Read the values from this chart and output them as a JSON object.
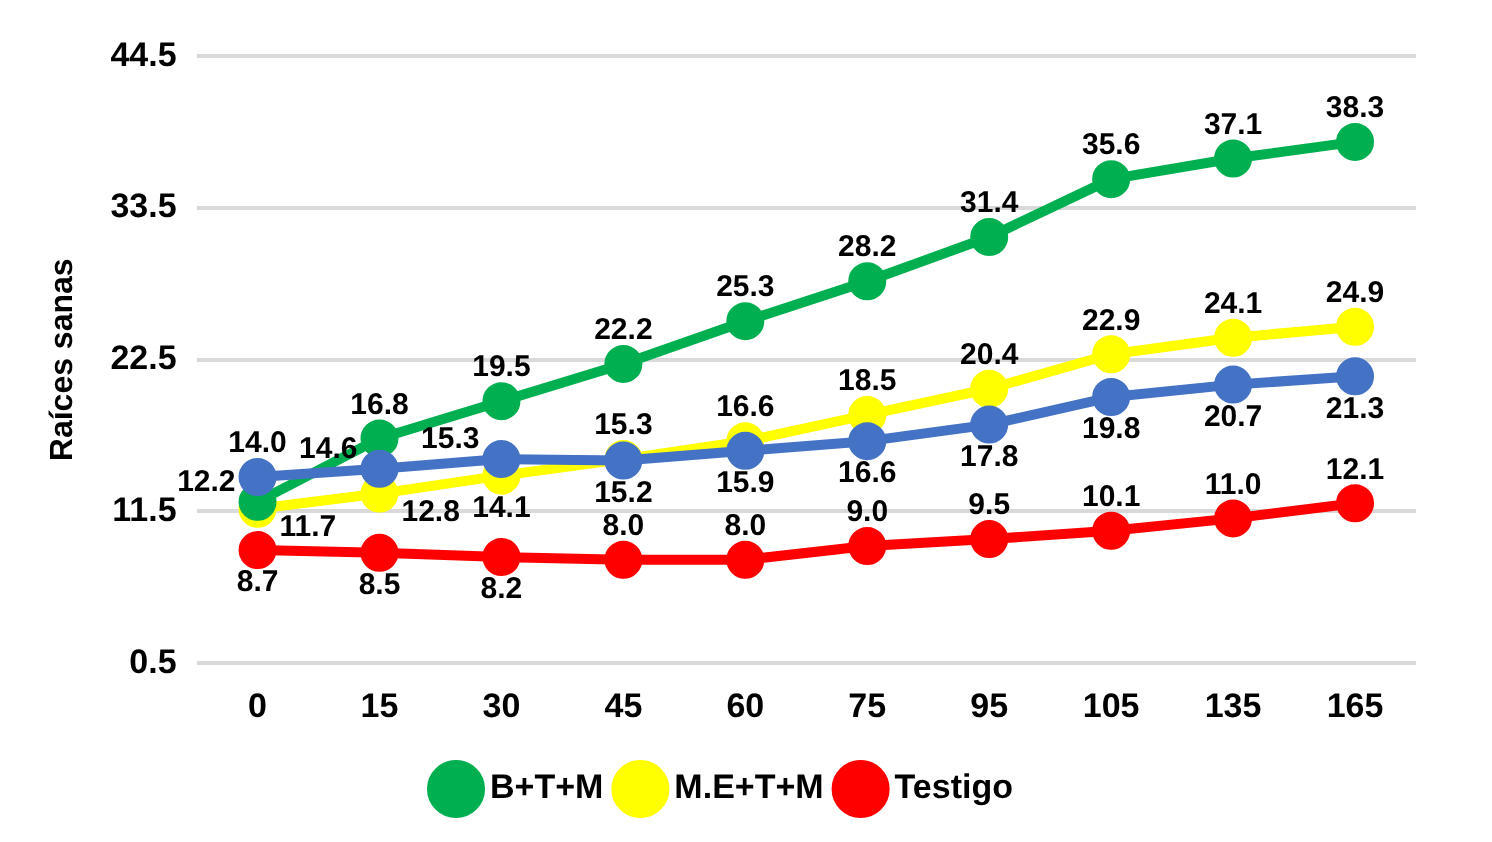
{
  "chart_data": {
    "type": "line",
    "ylabel": "Raíces sanas",
    "categories": [
      "0",
      "15",
      "30",
      "45",
      "60",
      "75",
      "95",
      "105",
      "135",
      "165"
    ],
    "series": [
      {
        "color": "#4472c4",
        "values": [
          14.0,
          14.6,
          15.3,
          15.2,
          15.9,
          16.6,
          17.8,
          19.8,
          20.7,
          21.3
        ],
        "value_labels": [
          "14.0",
          "14.6",
          "15.3",
          "15.2",
          "15.9",
          "16.6",
          "17.8",
          "19.8",
          "20.7",
          "21.3"
        ]
      },
      {
        "name": "B+T+M",
        "color": "#00b050",
        "values": [
          12.2,
          16.8,
          19.5,
          22.2,
          25.3,
          28.2,
          31.4,
          35.6,
          37.1,
          38.3
        ],
        "value_labels": [
          "12.2",
          "16.8",
          "19.5",
          "22.2",
          "25.3",
          "28.2",
          "31.4",
          "35.6",
          "37.1",
          "38.3"
        ]
      },
      {
        "name": "M.E+T+M",
        "color": "#ffff00",
        "values": [
          11.7,
          12.8,
          14.1,
          15.3,
          16.6,
          18.5,
          20.4,
          22.9,
          24.1,
          24.9
        ],
        "value_labels": [
          "11.7",
          "12.8",
          "14.1",
          "15.3",
          "16.6",
          "18.5",
          "20.4",
          "22.9",
          "24.1",
          "24.9"
        ]
      },
      {
        "name": "Testigo",
        "color": "#ff0000",
        "values": [
          8.7,
          8.5,
          8.2,
          8.0,
          8.0,
          9.0,
          9.5,
          10.1,
          11.0,
          12.1
        ],
        "value_labels": [
          "8.7",
          "8.5",
          "8.2",
          "8.0",
          "8.0",
          "9.0",
          "9.5",
          "10.1",
          "11.0",
          "12.1"
        ]
      }
    ],
    "ylim": [
      0.5,
      44.5
    ],
    "yticks": [
      {
        "value": 0.5,
        "label": "0.5"
      },
      {
        "value": 11.5,
        "label": "11.5"
      },
      {
        "value": 22.5,
        "label": "22.5"
      },
      {
        "value": 33.5,
        "label": "33.5"
      },
      {
        "value": 44.5,
        "label": "44.5"
      }
    ],
    "grid": "y",
    "legend": "bottom",
    "marker": "circle"
  }
}
